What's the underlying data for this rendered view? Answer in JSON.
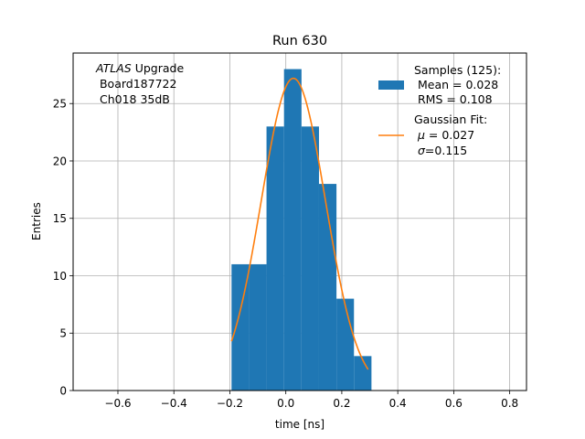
{
  "chart_data": {
    "type": "bar",
    "title": "Run 630",
    "xlabel": "time [ns]",
    "ylabel": "Entries",
    "xlim": [
      -0.76,
      0.86
    ],
    "ylim": [
      0,
      29.4
    ],
    "xticks": [
      -0.6,
      -0.4,
      -0.2,
      0.0,
      0.2,
      0.4,
      0.6,
      0.8
    ],
    "xtick_labels": [
      "−0.6",
      "−0.4",
      "−0.2",
      "0.0",
      "0.2",
      "0.4",
      "0.6",
      "0.8"
    ],
    "yticks": [
      0,
      5,
      10,
      15,
      20,
      25
    ],
    "ytick_labels": [
      "0",
      "5",
      "10",
      "15",
      "20",
      "25"
    ],
    "grid": true,
    "histogram": {
      "bin_edges": [
        -0.194,
        -0.1315,
        -0.069,
        -0.0065,
        0.056,
        0.1185,
        0.181,
        0.2435,
        0.306
      ],
      "counts": [
        11,
        11,
        23,
        28,
        23,
        18,
        8,
        3
      ],
      "color": "#1f77b4"
    },
    "fit": {
      "amplitude": 27.2,
      "mu": 0.027,
      "sigma": 0.115,
      "x_range": [
        -0.194,
        0.294
      ],
      "color": "#ff7f0e"
    },
    "annotation": {
      "italic": "ATLAS",
      "line1_rest": " Upgrade",
      "line2": " Board187722",
      "line3": " Ch018 35dB"
    },
    "legend": {
      "placement": "top-right",
      "hist_lines": [
        "Samples (125):",
        " Mean = 0.028",
        " RMS = 0.108"
      ],
      "fit_line1": "Gaussian Fit:",
      "fit_mu_symbol": "μ",
      "fit_mu_value": " = 0.027",
      "fit_sigma_symbol": "σ",
      "fit_sigma_value": "=0.115"
    }
  }
}
